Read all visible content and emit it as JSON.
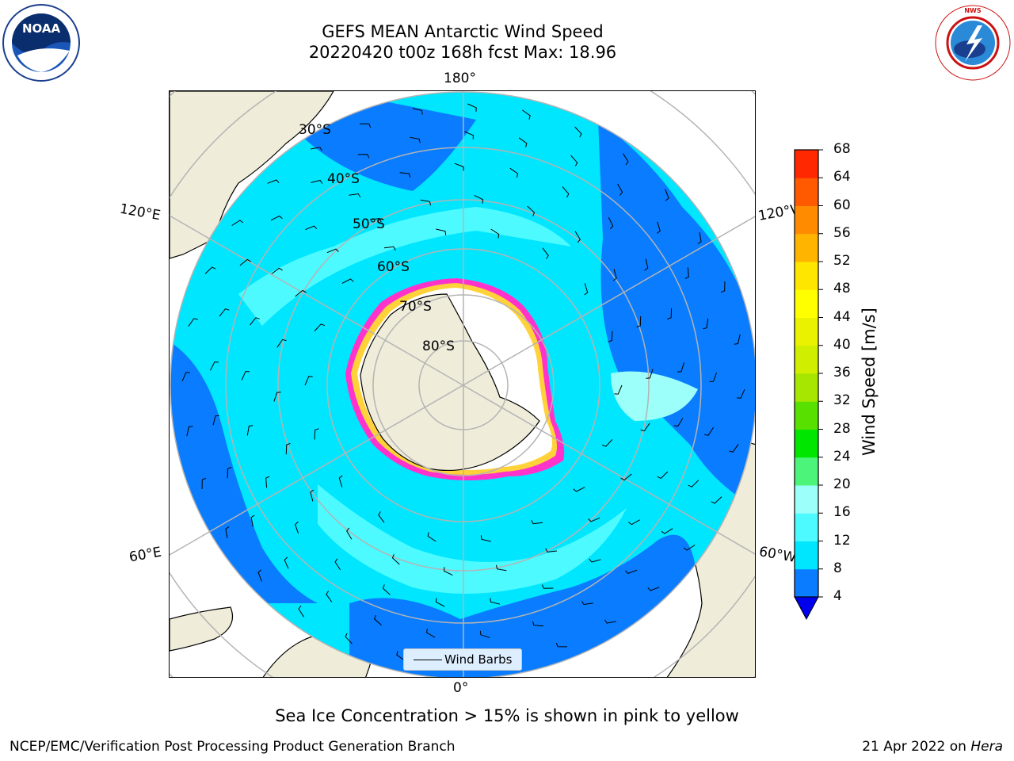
{
  "header": {
    "title_line1": "GEFS MEAN Antarctic Wind Speed",
    "title_line2": "20220420 t00z 168h fcst   Max: 18.96"
  },
  "logos": {
    "left": {
      "name": "noaa-logo",
      "text": "NOAA"
    },
    "right": {
      "name": "nws-logo",
      "text": "NATIONAL WEATHER SERVICE"
    }
  },
  "map": {
    "projection": "south-polar-stereographic",
    "longitude_labels": {
      "top": "180°",
      "upper_left": "120°E",
      "upper_right": "120°W",
      "lower_left": "60°E",
      "lower_right": "60°W",
      "bottom": "0°"
    },
    "latitude_labels": [
      "30°S",
      "40°S",
      "50°S",
      "60°S",
      "70°S",
      "80°S"
    ],
    "colors": {
      "land": "#efecd9",
      "ice_sheet": "#ffffff",
      "wind_4_8": "#0a7cff",
      "wind_8_12": "#00e6ff",
      "wind_12_16": "#4dfaff",
      "wind_16_20": "#9dfff9",
      "sea_ice_edge": "#ff33cc",
      "sea_ice_inner": "#ffd23a",
      "gridline": "#b4b4b4"
    },
    "legend": {
      "label": "Wind Barbs"
    }
  },
  "colorbar": {
    "label": "Wind Speed [m/s]",
    "ticks": [
      "4",
      "8",
      "12",
      "16",
      "20",
      "24",
      "28",
      "32",
      "36",
      "40",
      "44",
      "48",
      "52",
      "56",
      "60",
      "64",
      "68"
    ],
    "colors": [
      "#0a7cff",
      "#00e6ff",
      "#4dfaff",
      "#9dfff9",
      "#4cf57a",
      "#00e600",
      "#57e000",
      "#a6e600",
      "#cfee00",
      "#eaf200",
      "#ffff00",
      "#ffe600",
      "#ffb400",
      "#ff8c00",
      "#ff5a00",
      "#ff2800"
    ],
    "extend_min_color": "#0000ee"
  },
  "note": "Sea Ice Concentration > 15% is shown in pink to yellow",
  "footer": {
    "left": "NCEP/EMC/Verification Post Processing Product Generation Branch",
    "right_date": "21 Apr 2022 on",
    "right_host": "Hera"
  }
}
